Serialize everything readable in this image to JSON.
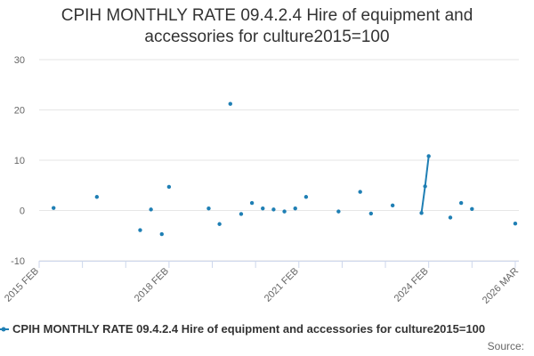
{
  "chart_data": {
    "type": "line",
    "title": "CPIH MONTHLY RATE 09.4.2.4 Hire of equipment and accessories for culture2015=100",
    "xlabel": "",
    "ylabel": "",
    "ylim": [
      -10,
      30
    ],
    "yticks": [
      -10,
      0,
      10,
      20,
      30
    ],
    "xlim": [
      "2015-02",
      "2026-03"
    ],
    "xtick_labels": [
      "2015 FEB",
      "2018 FEB",
      "2021 FEB",
      "2024 FEB",
      "2026 MAR"
    ],
    "grid": true,
    "legend_position": "bottom",
    "series": [
      {
        "name": "CPIH MONTHLY RATE 09.4.2.4 Hire of equipment and accessories for culture2015=100",
        "color": "#1f7fb4",
        "points": [
          {
            "x": "2015-06",
            "y": 0.5
          },
          {
            "x": "2016-06",
            "y": 2.7
          },
          {
            "x": "2017-06",
            "y": -3.9
          },
          {
            "x": "2017-09",
            "y": 0.2
          },
          {
            "x": "2017-12",
            "y": -4.7
          },
          {
            "x": "2018-02",
            "y": 4.7
          },
          {
            "x": "2019-01",
            "y": 0.4
          },
          {
            "x": "2019-04",
            "y": -2.7
          },
          {
            "x": "2019-07",
            "y": 21.2
          },
          {
            "x": "2019-10",
            "y": -0.7
          },
          {
            "x": "2020-01",
            "y": 1.5
          },
          {
            "x": "2020-04",
            "y": 0.4
          },
          {
            "x": "2020-07",
            "y": 0.2
          },
          {
            "x": "2020-10",
            "y": -0.2
          },
          {
            "x": "2021-01",
            "y": 0.4
          },
          {
            "x": "2021-04",
            "y": 2.7
          },
          {
            "x": "2022-01",
            "y": -0.2
          },
          {
            "x": "2022-07",
            "y": 3.7
          },
          {
            "x": "2022-10",
            "y": -0.6
          },
          {
            "x": "2023-04",
            "y": 1.0
          },
          {
            "x": "2023-12",
            "y": -0.5
          },
          {
            "x": "2024-01",
            "y": 4.8
          },
          {
            "x": "2024-02",
            "y": 10.8
          },
          {
            "x": "2024-08",
            "y": -1.4
          },
          {
            "x": "2024-11",
            "y": 1.5
          },
          {
            "x": "2025-02",
            "y": 0.3
          },
          {
            "x": "2026-02",
            "y": -2.6
          }
        ]
      }
    ]
  },
  "credit": "Source:"
}
